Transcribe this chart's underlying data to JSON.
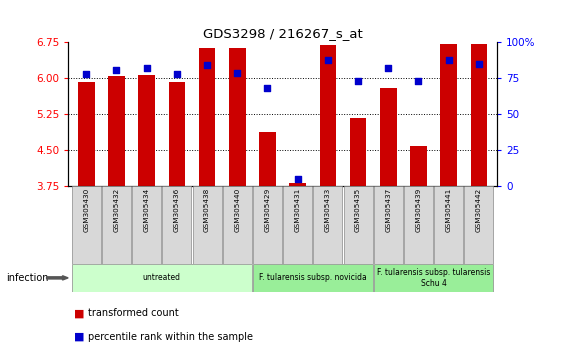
{
  "title": "GDS3298 / 216267_s_at",
  "samples": [
    "GSM305430",
    "GSM305432",
    "GSM305434",
    "GSM305436",
    "GSM305438",
    "GSM305440",
    "GSM305429",
    "GSM305431",
    "GSM305433",
    "GSM305435",
    "GSM305437",
    "GSM305439",
    "GSM305441",
    "GSM305442"
  ],
  "red_values": [
    5.92,
    6.05,
    6.07,
    5.92,
    6.63,
    6.63,
    4.88,
    3.82,
    6.7,
    5.17,
    5.8,
    4.58,
    6.72,
    6.72
  ],
  "blue_values": [
    78,
    81,
    82,
    78,
    84,
    79,
    68,
    5,
    88,
    73,
    82,
    73,
    88,
    85
  ],
  "ylim_left": [
    3.75,
    6.75
  ],
  "ylim_right": [
    0,
    100
  ],
  "yticks_left": [
    3.75,
    4.5,
    5.25,
    6.0,
    6.75
  ],
  "yticks_right": [
    0,
    25,
    50,
    75,
    100
  ],
  "hlines": [
    6.0,
    5.25,
    4.5
  ],
  "groups": [
    {
      "label": "untreated",
      "start": 0,
      "end": 6,
      "color": "#ccffcc"
    },
    {
      "label": "F. tularensis subsp. novicida",
      "start": 6,
      "end": 10,
      "color": "#99ee99"
    },
    {
      "label": "F. tularensis subsp. tularensis\nSchu 4",
      "start": 10,
      "end": 14,
      "color": "#99ee99"
    }
  ],
  "infection_label": "infection",
  "legend_red": "transformed count",
  "legend_blue": "percentile rank within the sample",
  "bar_color": "#cc0000",
  "dot_color": "#0000cc",
  "bar_width": 0.55,
  "fig_width": 5.68,
  "fig_height": 3.54,
  "group_colors_light": [
    "#ccffcc",
    "#99ee99"
  ],
  "sample_box_color": "#d8d8d8"
}
